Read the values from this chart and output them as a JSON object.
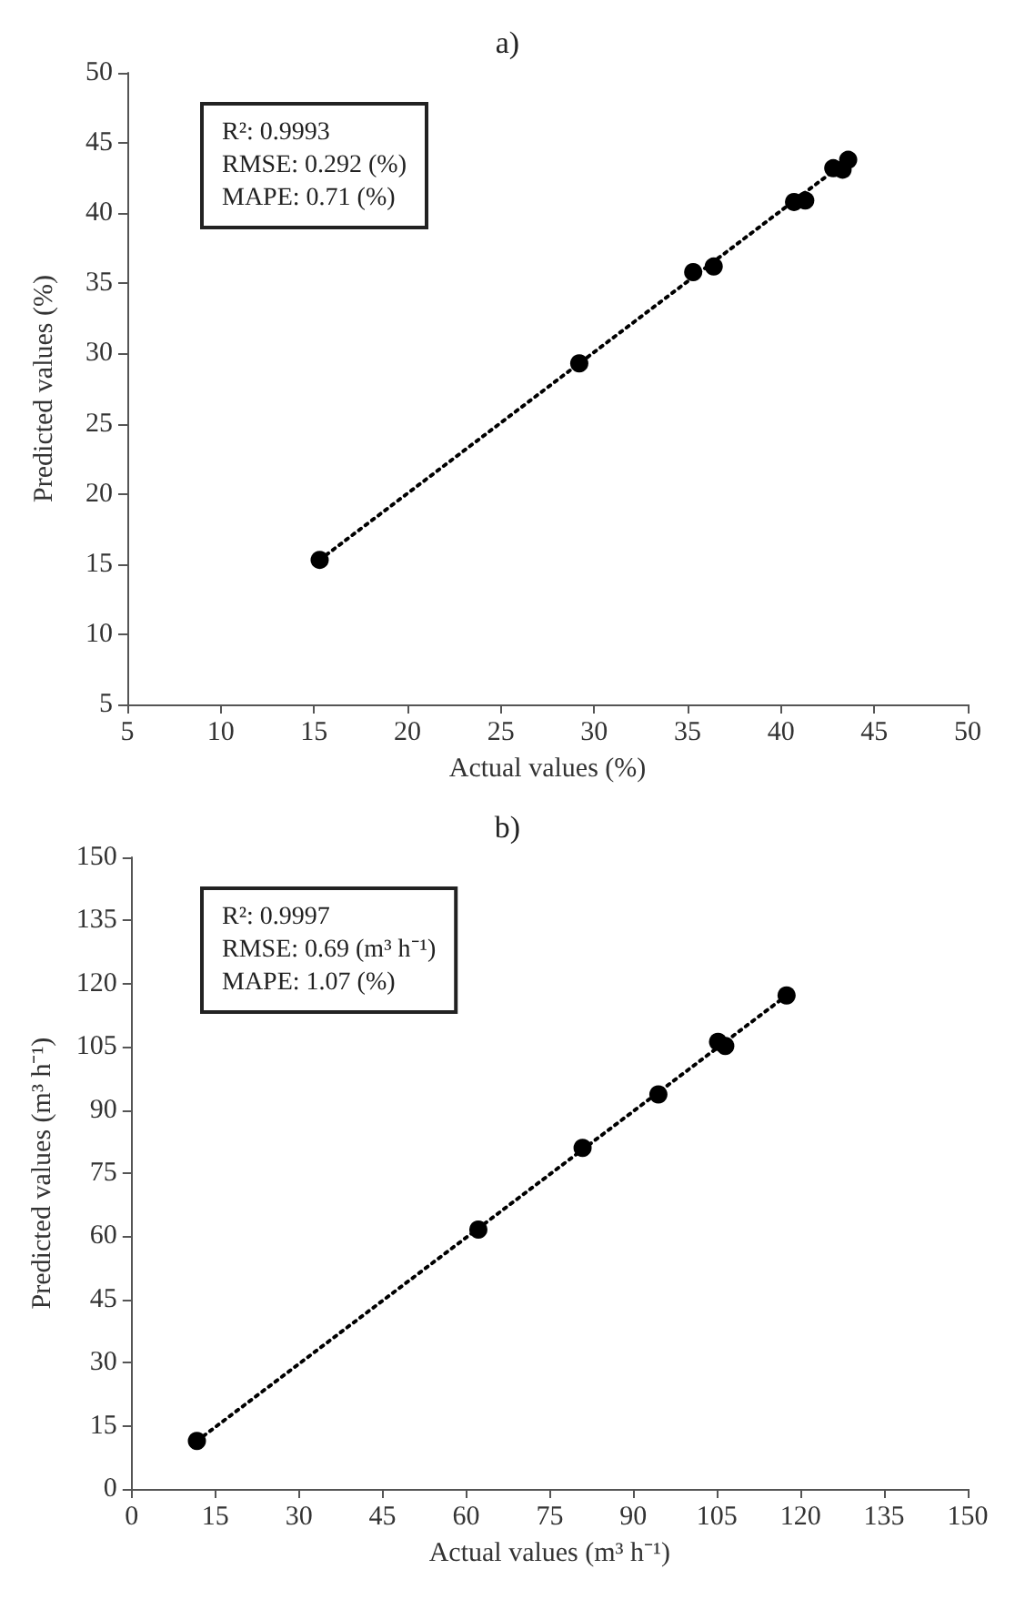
{
  "chart_data": [
    {
      "type": "scatter",
      "title": "a)",
      "xlabel": "Actual values (%)",
      "ylabel": "Predicted values (%)",
      "annotations": [
        "R²: 0.9993",
        "RMSE: 0.292 (%)",
        "MAPE: 0.71 (%)"
      ],
      "xlim": [
        5,
        50
      ],
      "ylim": [
        5,
        50
      ],
      "xticks": [
        5,
        10,
        15,
        20,
        25,
        30,
        35,
        40,
        45,
        50
      ],
      "yticks": [
        5,
        10,
        15,
        20,
        25,
        30,
        35,
        40,
        45,
        50
      ],
      "grid": false,
      "series": [
        {
          "color": "#000000",
          "marker": "circle",
          "x": [
            15.3,
            29.2,
            35.3,
            36.4,
            40.7,
            41.3,
            42.8,
            43.3,
            43.6
          ],
          "values": [
            15.3,
            29.3,
            35.8,
            36.2,
            40.8,
            40.9,
            43.2,
            43.1,
            43.8
          ]
        },
        {
          "type": "line",
          "color": "#000000",
          "marker": "none",
          "line_style": "dotted",
          "x": [
            15.3,
            43.6
          ],
          "values": [
            15.3,
            43.8
          ]
        }
      ]
    },
    {
      "type": "scatter",
      "title": "b)",
      "xlabel": "Actual values (m³ h⁻¹)",
      "ylabel": "Predicted values (m³ h⁻¹)",
      "annotations": [
        "R²: 0.9997",
        "RMSE: 0.69 (m³ h⁻¹)",
        "MAPE: 1.07 (%)"
      ],
      "xlim": [
        0,
        150
      ],
      "ylim": [
        0,
        150
      ],
      "xticks": [
        0,
        15,
        30,
        45,
        60,
        75,
        90,
        105,
        120,
        135,
        150
      ],
      "yticks": [
        0,
        15,
        30,
        45,
        60,
        75,
        90,
        105,
        120,
        135,
        150
      ],
      "grid": false,
      "series": [
        {
          "color": "#000000",
          "marker": "circle",
          "x": [
            11.7,
            62.2,
            80.9,
            94.5,
            105.2,
            106.5,
            117.5
          ],
          "values": [
            11.4,
            61.6,
            81.0,
            93.7,
            106.2,
            105.2,
            117.2
          ]
        },
        {
          "type": "line",
          "color": "#000000",
          "marker": "none",
          "line_style": "dotted",
          "x": [
            11.7,
            117.5
          ],
          "values": [
            11.4,
            117.2
          ]
        }
      ]
    }
  ]
}
